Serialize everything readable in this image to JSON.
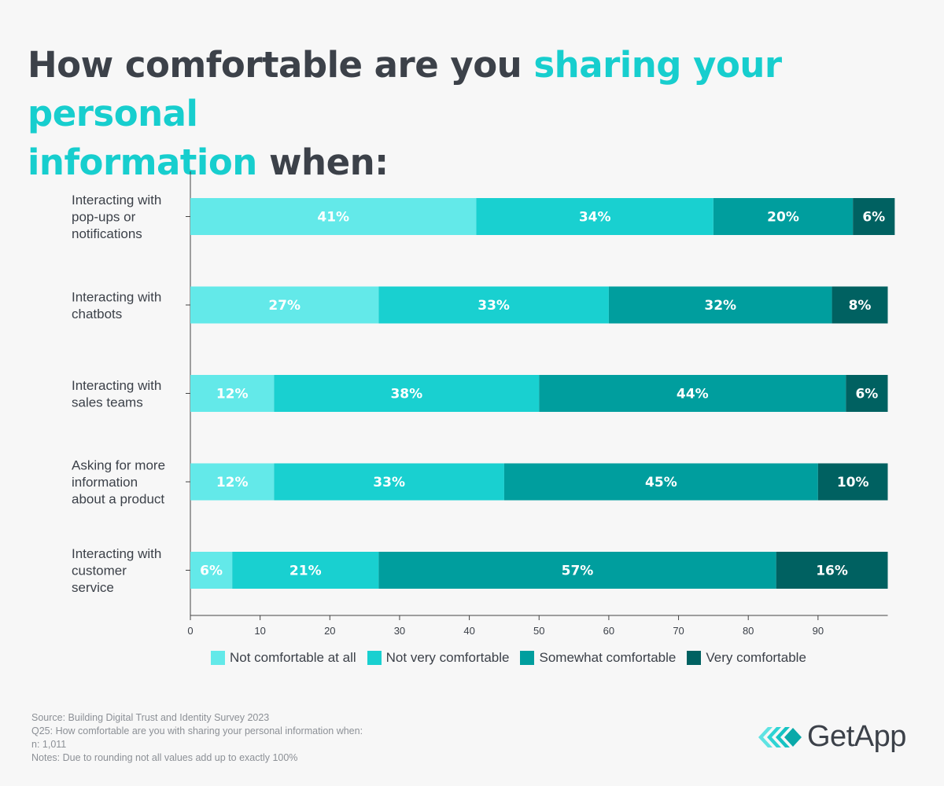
{
  "title": {
    "part1": "How comfortable are you ",
    "highlight1": "sharing your personal",
    "highlight2": "information",
    "part2": " when:"
  },
  "chart_data": {
    "type": "bar",
    "orientation": "horizontal",
    "stacked": true,
    "categories": [
      [
        "Interacting with",
        "pop-ups or",
        "notifications"
      ],
      [
        "Interacting with",
        "chatbots"
      ],
      [
        "Interacting with",
        "sales teams"
      ],
      [
        "Asking for more",
        "information",
        "about a product"
      ],
      [
        "Interacting with",
        "customer",
        "service"
      ]
    ],
    "series": [
      {
        "name": "Not comfortable at all",
        "color": "#63e9e9",
        "values": [
          41,
          27,
          12,
          12,
          6
        ],
        "labels": [
          "41%",
          "27%",
          "12%",
          "12%",
          "6%"
        ]
      },
      {
        "name": "Not very comfortable",
        "color": "#19d0d0",
        "values": [
          34,
          33,
          38,
          33,
          21
        ],
        "labels": [
          "34%",
          "33%",
          "38%",
          "33%",
          "21%"
        ]
      },
      {
        "name": "Somewhat comfortable",
        "color": "#009e9e",
        "values": [
          20,
          32,
          44,
          45,
          57
        ],
        "labels": [
          "20%",
          "32%",
          "44%",
          "45%",
          "57%"
        ]
      },
      {
        "name": "Very comfortable",
        "color": "#006161",
        "values": [
          6,
          8,
          6,
          10,
          16
        ],
        "labels": [
          "6%",
          "8%",
          "6%",
          "10%",
          "16%"
        ]
      }
    ],
    "xlim": [
      0,
      100
    ],
    "xticks": [
      0,
      10,
      20,
      30,
      40,
      50,
      60,
      70,
      80,
      90
    ],
    "legend_position": "bottom",
    "grid": false
  },
  "footer": {
    "lines": [
      "Source: Building Digital Trust and Identity Survey 2023",
      "Q25: How comfortable are you with sharing your personal information when:",
      "n: 1,011",
      "Notes: Due to rounding not all values add up to exactly 100%"
    ]
  },
  "logo": {
    "text": "GetApp"
  }
}
